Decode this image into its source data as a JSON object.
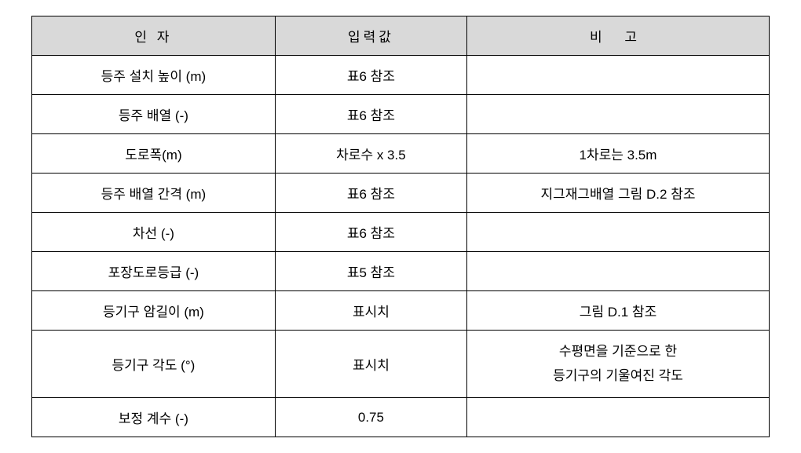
{
  "table": {
    "headers": {
      "col1": "인 자",
      "col2": "입력값",
      "col3": "비  고"
    },
    "rows": [
      {
        "factor": "등주 설치 높이 (m)",
        "input": "표6 참조",
        "note": ""
      },
      {
        "factor": "등주 배열 (-)",
        "input": "표6 참조",
        "note": ""
      },
      {
        "factor": "도로폭(m)",
        "input": "차로수 x 3.5",
        "note": "1차로는 3.5m"
      },
      {
        "factor": "등주 배열 간격 (m)",
        "input": "표6 참조",
        "note": "지그재그배열 그림 D.2 참조"
      },
      {
        "factor": "차선 (-)",
        "input": "표6 참조",
        "note": ""
      },
      {
        "factor": "포장도로등급 (-)",
        "input": "표5 참조",
        "note": ""
      },
      {
        "factor": "등기구 암길이 (m)",
        "input": "표시치",
        "note": "그림 D.1 참조"
      },
      {
        "factor": "등기구 각도 (°)",
        "input": "표시치",
        "note": "수평면을 기준으로 한\n등기구의 기울여진 각도"
      },
      {
        "factor": "보정 계수 (-)",
        "input": "0.75",
        "note": ""
      }
    ],
    "styling": {
      "header_bg_color": "#d9d9d9",
      "border_color": "#000000",
      "font_size": 17,
      "cell_padding": "12px 8px",
      "background_color": "#ffffff"
    }
  }
}
